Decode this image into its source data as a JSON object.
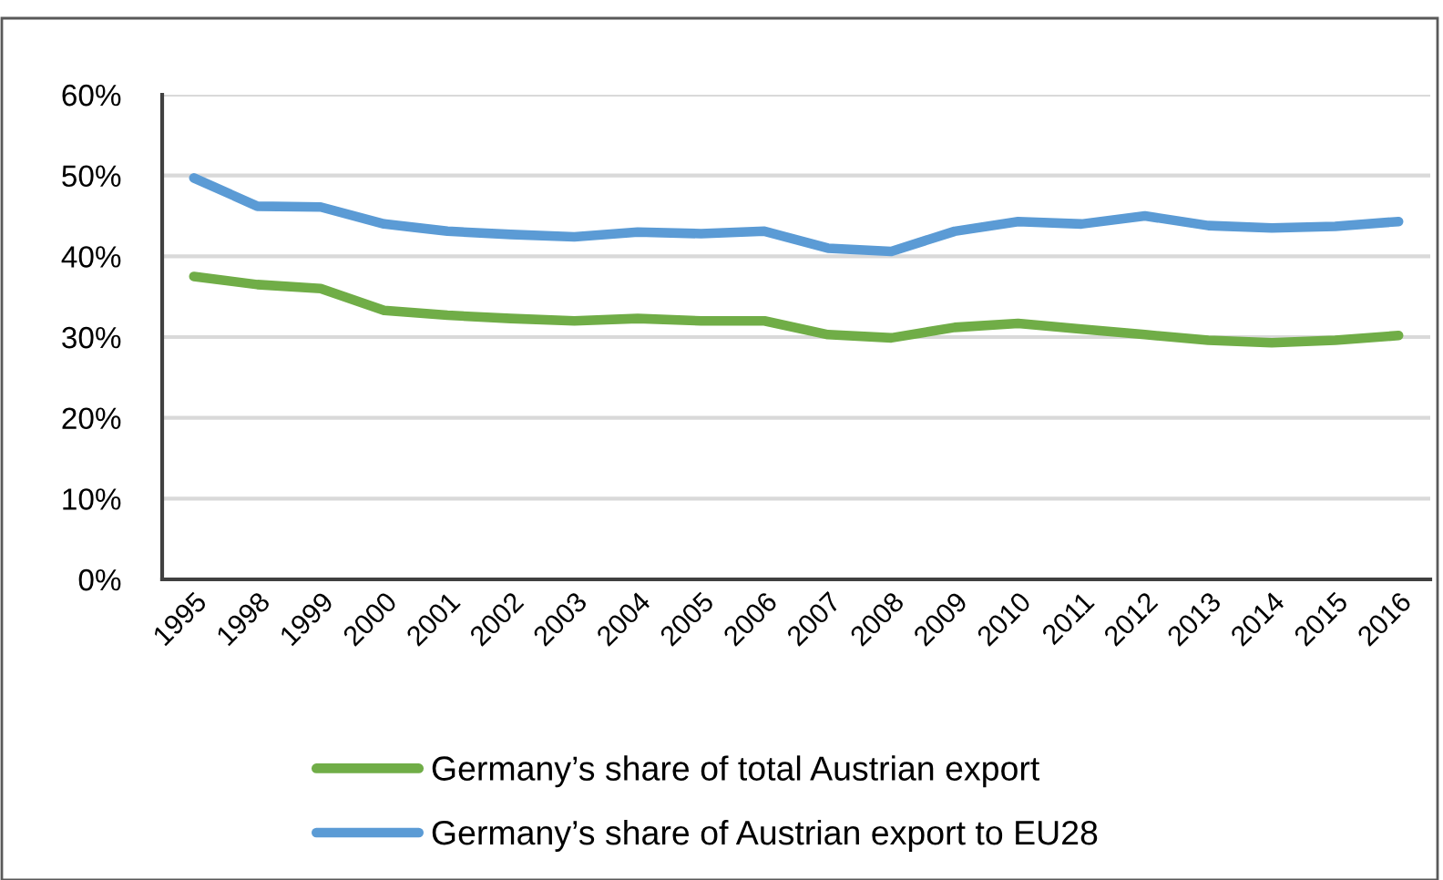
{
  "chart_data": {
    "type": "line",
    "categories": [
      "1995",
      "1998",
      "1999",
      "2000",
      "2001",
      "2002",
      "2003",
      "2004",
      "2005",
      "2006",
      "2007",
      "2008",
      "2009",
      "2010",
      "2011",
      "2012",
      "2013",
      "2014",
      "2015",
      "2016"
    ],
    "series": [
      {
        "name": "Germany’s share of total Austrian export",
        "color": "#70ad47",
        "values": [
          37.5,
          36.5,
          36.0,
          33.3,
          32.7,
          32.3,
          32.0,
          32.3,
          32.0,
          32.0,
          30.3,
          29.9,
          31.2,
          31.7,
          31.0,
          30.3,
          29.6,
          29.3,
          29.6,
          30.2
        ]
      },
      {
        "name": "Germany’s share of Austrian export to EU28",
        "color": "#5b9bd5",
        "values": [
          49.7,
          46.2,
          46.1,
          44.0,
          43.1,
          42.7,
          42.4,
          43.0,
          42.8,
          43.1,
          41.0,
          40.6,
          43.1,
          44.3,
          44.0,
          45.0,
          43.8,
          43.5,
          43.7,
          44.3
        ]
      }
    ],
    "ylim": [
      0,
      60
    ],
    "yticks": [
      {
        "value": 0,
        "label": "0%"
      },
      {
        "value": 10,
        "label": "10%"
      },
      {
        "value": 20,
        "label": "20%"
      },
      {
        "value": 30,
        "label": "30%"
      },
      {
        "value": 40,
        "label": "40%"
      },
      {
        "value": 50,
        "label": "50%"
      },
      {
        "value": 60,
        "label": "60%"
      }
    ],
    "grid": "y",
    "legend": "bottom",
    "marker": "none",
    "line_style": "solid"
  }
}
